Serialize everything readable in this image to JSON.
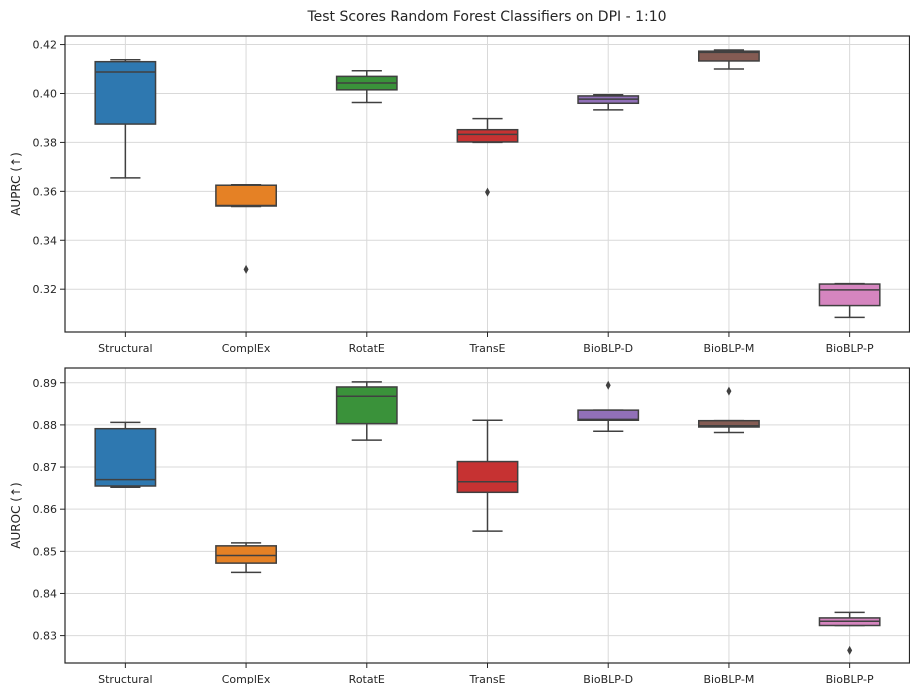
{
  "figure": {
    "title": "Test Scores Random Forest Classifiers on DPI - 1:10"
  },
  "chart_data": [
    {
      "type": "box",
      "ylabel": "AUPRC (↑)",
      "ylim": [
        0.3025,
        0.4235
      ],
      "yticks": [
        0.32,
        0.34,
        0.36,
        0.38,
        0.4,
        0.42
      ],
      "ytick_labels": [
        "0.32",
        "0.34",
        "0.36",
        "0.38",
        "0.40",
        "0.42"
      ],
      "grid": true,
      "categories": [
        "Structural",
        "ComplEx",
        "RotatE",
        "TransE",
        "BioBLP-D",
        "BioBLP-M",
        "BioBLP-P"
      ],
      "colors": [
        "#2e78b0",
        "#e58125",
        "#3a923a",
        "#c63232",
        "#9170b8",
        "#845b53",
        "#d585bf"
      ],
      "boxes": [
        {
          "whislo": 0.3655,
          "q1": 0.3875,
          "med": 0.4088,
          "q3": 0.413,
          "whishi": 0.4138,
          "fliers": []
        },
        {
          "whislo": 0.3538,
          "q1": 0.354,
          "med": 0.3542,
          "q3": 0.3625,
          "whishi": 0.3627,
          "fliers": [
            0.3281
          ]
        },
        {
          "whislo": 0.3963,
          "q1": 0.4015,
          "med": 0.4043,
          "q3": 0.407,
          "whishi": 0.4093,
          "fliers": []
        },
        {
          "whislo": 0.38,
          "q1": 0.3802,
          "med": 0.3833,
          "q3": 0.3852,
          "whishi": 0.3897,
          "fliers": [
            0.3597
          ]
        },
        {
          "whislo": 0.3933,
          "q1": 0.396,
          "med": 0.3977,
          "q3": 0.399,
          "whishi": 0.3995,
          "fliers": []
        },
        {
          "whislo": 0.41,
          "q1": 0.4133,
          "med": 0.4168,
          "q3": 0.4173,
          "whishi": 0.4178,
          "fliers": []
        },
        {
          "whislo": 0.3085,
          "q1": 0.3133,
          "med": 0.3197,
          "q3": 0.3221,
          "whishi": 0.3223,
          "fliers": []
        }
      ]
    },
    {
      "type": "box",
      "ylabel": "AUROC (↑)",
      "ylim": [
        0.8235,
        0.8935
      ],
      "yticks": [
        0.83,
        0.84,
        0.85,
        0.86,
        0.87,
        0.88,
        0.89
      ],
      "ytick_labels": [
        "0.83",
        "0.84",
        "0.85",
        "0.86",
        "0.87",
        "0.88",
        "0.89"
      ],
      "grid": true,
      "categories": [
        "Structural",
        "ComplEx",
        "RotatE",
        "TransE",
        "BioBLP-D",
        "BioBLP-M",
        "BioBLP-P"
      ],
      "colors": [
        "#2e78b0",
        "#e58125",
        "#3a923a",
        "#c63232",
        "#9170b8",
        "#845b53",
        "#d585bf"
      ],
      "boxes": [
        {
          "whislo": 0.8652,
          "q1": 0.8655,
          "med": 0.867,
          "q3": 0.8791,
          "whishi": 0.8806,
          "fliers": []
        },
        {
          "whislo": 0.845,
          "q1": 0.8472,
          "med": 0.849,
          "q3": 0.8513,
          "whishi": 0.852,
          "fliers": []
        },
        {
          "whislo": 0.8764,
          "q1": 0.8803,
          "med": 0.8868,
          "q3": 0.889,
          "whishi": 0.8902,
          "fliers": []
        },
        {
          "whislo": 0.8548,
          "q1": 0.864,
          "med": 0.8665,
          "q3": 0.8713,
          "whishi": 0.8811,
          "fliers": []
        },
        {
          "whislo": 0.8785,
          "q1": 0.8811,
          "med": 0.8813,
          "q3": 0.8835,
          "whishi": 0.8835,
          "fliers": [
            0.8894
          ]
        },
        {
          "whislo": 0.8782,
          "q1": 0.8795,
          "med": 0.8798,
          "q3": 0.881,
          "whishi": 0.881,
          "fliers": [
            0.888
          ]
        },
        {
          "whislo": 0.8324,
          "q1": 0.8324,
          "med": 0.8334,
          "q3": 0.8342,
          "whishi": 0.8355,
          "fliers": [
            0.8265
          ]
        }
      ]
    }
  ]
}
